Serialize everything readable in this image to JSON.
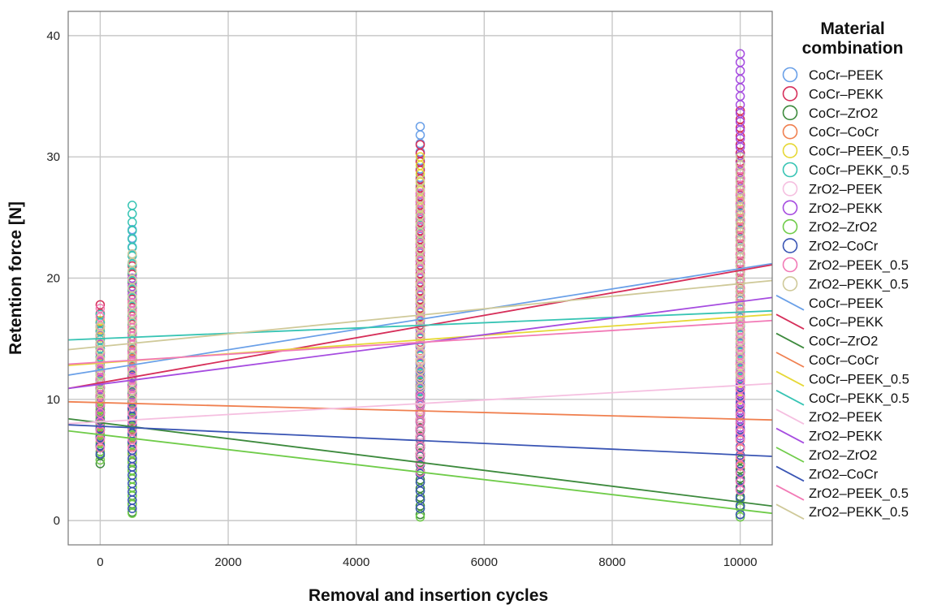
{
  "chart_data": {
    "type": "scatter",
    "xlabel": "Removal and insertion cycles",
    "ylabel": "Retention force [N]",
    "xlim": [
      -500,
      10500
    ],
    "ylim": [
      -2,
      42
    ],
    "xticks": [
      0,
      2000,
      4000,
      6000,
      8000,
      10000
    ],
    "yticks": [
      0,
      10,
      20,
      30,
      40
    ],
    "grid": true,
    "legend": {
      "title": "Material combination",
      "position": "right"
    },
    "series": [
      {
        "name": "CoCr–PEEK",
        "color": "#6aa0e8",
        "fit_line": [
          [
            -500,
            12.0
          ],
          [
            10500,
            21.2
          ]
        ],
        "points": [
          {
            "x": 0,
            "min": 7.5,
            "max": 16.0
          },
          {
            "x": 500,
            "min": 7.0,
            "max": 24.0
          },
          {
            "x": 5000,
            "min": 6.0,
            "max": 32.5
          },
          {
            "x": 10000,
            "min": 8.0,
            "max": 31.0
          }
        ]
      },
      {
        "name": "CoCr–PEKK",
        "color": "#d62f5a",
        "fit_line": [
          [
            -500,
            10.9
          ],
          [
            10500,
            21.1
          ]
        ],
        "points": [
          {
            "x": 0,
            "min": 7.0,
            "max": 17.8
          },
          {
            "x": 500,
            "min": 6.5,
            "max": 21.0
          },
          {
            "x": 5000,
            "min": 5.5,
            "max": 31.0
          },
          {
            "x": 10000,
            "min": 8.0,
            "max": 33.8
          }
        ]
      },
      {
        "name": "CoCr–ZrO2",
        "color": "#3d8a3d",
        "fit_line": [
          [
            -500,
            8.4
          ],
          [
            10500,
            1.2
          ]
        ],
        "points": [
          {
            "x": 0,
            "min": 4.7,
            "max": 13.0
          },
          {
            "x": 500,
            "min": 0.7,
            "max": 13.0
          },
          {
            "x": 5000,
            "min": 0.5,
            "max": 12.0
          },
          {
            "x": 10000,
            "min": 0.5,
            "max": 5.0
          }
        ]
      },
      {
        "name": "CoCr–CoCr",
        "color": "#f08050",
        "fit_line": [
          [
            -500,
            9.8
          ],
          [
            10500,
            8.3
          ]
        ],
        "points": [
          {
            "x": 0,
            "min": 6.5,
            "max": 13.0
          },
          {
            "x": 500,
            "min": 5.5,
            "max": 14.0
          },
          {
            "x": 5000,
            "min": 5.0,
            "max": 14.0
          },
          {
            "x": 10000,
            "min": 4.5,
            "max": 13.0
          }
        ]
      },
      {
        "name": "CoCr–PEEK_0.5",
        "color": "#e6d836",
        "fit_line": [
          [
            -500,
            12.8
          ],
          [
            10500,
            17.0
          ]
        ],
        "points": [
          {
            "x": 0,
            "min": 9.0,
            "max": 16.5
          },
          {
            "x": 500,
            "min": 9.0,
            "max": 18.0
          },
          {
            "x": 5000,
            "min": 9.0,
            "max": 30.0
          },
          {
            "x": 10000,
            "min": 10.0,
            "max": 27.0
          }
        ]
      },
      {
        "name": "CoCr–PEKK_0.5",
        "color": "#37c4b4",
        "fit_line": [
          [
            -500,
            14.9
          ],
          [
            10500,
            17.3
          ]
        ],
        "points": [
          {
            "x": 0,
            "min": 10.0,
            "max": 17.0
          },
          {
            "x": 500,
            "min": 10.0,
            "max": 26.0
          },
          {
            "x": 5000,
            "min": 10.0,
            "max": 25.0
          },
          {
            "x": 10000,
            "min": 11.0,
            "max": 26.0
          }
        ]
      },
      {
        "name": "ZrO2–PEEK",
        "color": "#f5bfe0",
        "fit_line": [
          [
            -500,
            8.0
          ],
          [
            10500,
            11.3
          ]
        ],
        "points": [
          {
            "x": 0,
            "min": 5.0,
            "max": 12.0
          },
          {
            "x": 500,
            "min": 5.0,
            "max": 13.0
          },
          {
            "x": 5000,
            "min": 5.0,
            "max": 16.0
          },
          {
            "x": 10000,
            "min": 6.0,
            "max": 17.0
          }
        ]
      },
      {
        "name": "ZrO2–PEKK",
        "color": "#a64ce0",
        "fit_line": [
          [
            -500,
            10.9
          ],
          [
            10500,
            18.4
          ]
        ],
        "points": [
          {
            "x": 0,
            "min": 8.0,
            "max": 16.0
          },
          {
            "x": 500,
            "min": 7.0,
            "max": 20.0
          },
          {
            "x": 5000,
            "min": 6.0,
            "max": 27.0
          },
          {
            "x": 10000,
            "min": 7.0,
            "max": 38.5
          }
        ]
      },
      {
        "name": "ZrO2–ZrO2",
        "color": "#70cc4a",
        "fit_line": [
          [
            -500,
            7.4
          ],
          [
            10500,
            0.6
          ]
        ],
        "points": [
          {
            "x": 0,
            "min": 5.0,
            "max": 12.0
          },
          {
            "x": 500,
            "min": 0.6,
            "max": 12.0
          },
          {
            "x": 5000,
            "min": 0.3,
            "max": 11.0
          },
          {
            "x": 10000,
            "min": 0.3,
            "max": 4.0
          }
        ]
      },
      {
        "name": "ZrO2–CoCr",
        "color": "#3a55b4",
        "fit_line": [
          [
            -500,
            7.9
          ],
          [
            10500,
            5.3
          ]
        ],
        "points": [
          {
            "x": 0,
            "min": 5.5,
            "max": 11.0
          },
          {
            "x": 500,
            "min": 1.0,
            "max": 12.0
          },
          {
            "x": 5000,
            "min": 1.0,
            "max": 12.5
          },
          {
            "x": 10000,
            "min": 0.5,
            "max": 11.0
          }
        ]
      },
      {
        "name": "ZrO2–PEEK_0.5",
        "color": "#f27ab6",
        "fit_line": [
          [
            -500,
            12.9
          ],
          [
            10500,
            16.5
          ]
        ],
        "points": [
          {
            "x": 0,
            "min": 6.0,
            "max": 17.5
          },
          {
            "x": 500,
            "min": 6.0,
            "max": 18.0
          },
          {
            "x": 5000,
            "min": 4.0,
            "max": 27.0
          },
          {
            "x": 10000,
            "min": 2.5,
            "max": 29.0
          }
        ]
      },
      {
        "name": "ZrO2–PEKK_0.5",
        "color": "#cfc999",
        "fit_line": [
          [
            -500,
            14.1
          ],
          [
            10500,
            19.8
          ]
        ],
        "points": [
          {
            "x": 0,
            "min": 10.0,
            "max": 16.0
          },
          {
            "x": 500,
            "min": 10.0,
            "max": 22.0
          },
          {
            "x": 5000,
            "min": 11.0,
            "max": 28.0
          },
          {
            "x": 10000,
            "min": 12.0,
            "max": 30.0
          }
        ]
      }
    ]
  }
}
